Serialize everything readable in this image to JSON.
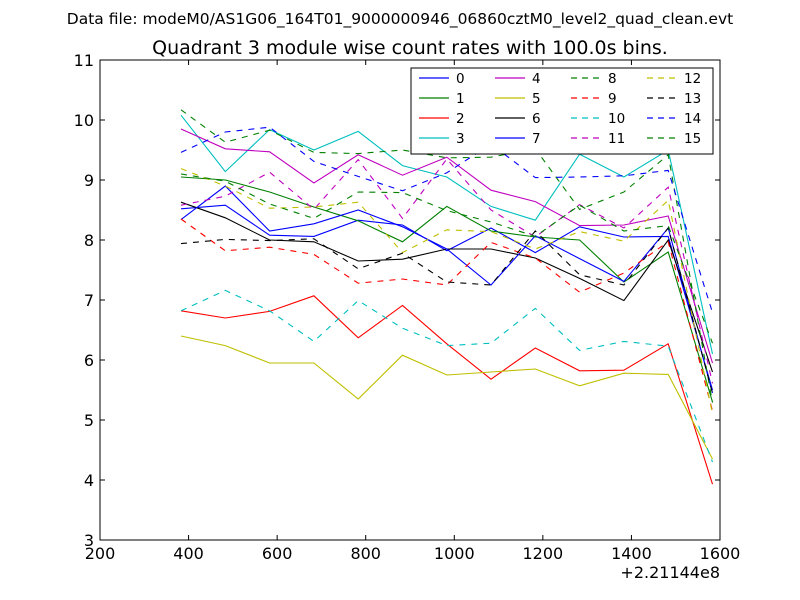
{
  "chart_data": {
    "type": "line",
    "header": "Data file: modeM0/AS1G06_164T01_9000000946_06860cztM0_level2_quad_clean.evt",
    "title": "Quadrant 3 module wise count rates with 100.0s bins.",
    "xlabel": "",
    "ylabel": "",
    "x_offset_label": "+2.21144e8",
    "xlim": [
      200,
      1600
    ],
    "ylim": [
      3,
      11
    ],
    "xticks": [
      "200",
      "400",
      "600",
      "800",
      "1000",
      "1200",
      "1400",
      "1600"
    ],
    "yticks": [
      "3",
      "4",
      "5",
      "6",
      "7",
      "8",
      "9",
      "10",
      "11"
    ],
    "x": [
      383,
      483,
      583,
      683,
      783,
      883,
      983,
      1083,
      1183,
      1283,
      1383,
      1483,
      1583
    ],
    "legend_position": "top-right",
    "series": [
      {
        "name": "0",
        "color": "#0000ff",
        "dash": "solid",
        "values": [
          8.52,
          8.58,
          8.08,
          8.06,
          8.33,
          8.25,
          7.82,
          8.2,
          7.79,
          8.22,
          8.05,
          8.06,
          5.5
        ]
      },
      {
        "name": "1",
        "color": "#008000",
        "dash": "solid",
        "values": [
          9.05,
          9.0,
          8.8,
          8.55,
          8.32,
          7.97,
          8.56,
          8.15,
          8.05,
          8.0,
          7.3,
          7.8,
          5.3
        ]
      },
      {
        "name": "2",
        "color": "#ff0000",
        "dash": "solid",
        "values": [
          6.82,
          6.7,
          6.81,
          7.07,
          6.37,
          6.91,
          6.27,
          5.68,
          6.2,
          5.82,
          5.83,
          6.27,
          3.93
        ]
      },
      {
        "name": "3",
        "color": "#00bfbf",
        "dash": "solid",
        "values": [
          10.08,
          9.14,
          9.84,
          9.5,
          9.81,
          9.24,
          9.05,
          8.56,
          8.33,
          9.43,
          9.05,
          9.5,
          6.1
        ]
      },
      {
        "name": "4",
        "color": "#bf00bf",
        "dash": "solid",
        "values": [
          9.85,
          9.52,
          9.47,
          8.95,
          9.42,
          9.08,
          9.38,
          8.83,
          8.64,
          8.24,
          8.25,
          8.4,
          5.95
        ]
      },
      {
        "name": "5",
        "color": "#bfbf00",
        "dash": "solid",
        "values": [
          6.4,
          6.24,
          5.95,
          5.95,
          5.35,
          6.08,
          5.75,
          5.8,
          5.85,
          5.57,
          5.78,
          5.76,
          4.35
        ]
      },
      {
        "name": "6",
        "color": "#000000",
        "dash": "solid",
        "values": [
          8.63,
          8.37,
          8.0,
          7.97,
          7.65,
          7.68,
          7.85,
          7.85,
          7.7,
          7.36,
          6.99,
          8.0,
          5.8
        ]
      },
      {
        "name": "7",
        "color": "#0000ff",
        "dash": "solid",
        "values": [
          8.34,
          8.9,
          8.15,
          8.27,
          8.5,
          8.22,
          7.85,
          7.25,
          8.07,
          7.69,
          7.31,
          8.2,
          5.45
        ]
      },
      {
        "name": "8",
        "color": "#008000",
        "dash": "dashed",
        "values": [
          10.17,
          9.63,
          9.83,
          9.46,
          9.44,
          9.5,
          9.37,
          9.38,
          9.52,
          8.51,
          8.8,
          9.42,
          5.29
        ]
      },
      {
        "name": "9",
        "color": "#ff0000",
        "dash": "dashed",
        "values": [
          8.35,
          7.82,
          7.88,
          7.76,
          7.28,
          7.35,
          7.25,
          7.96,
          7.7,
          7.13,
          7.45,
          7.97,
          5.15
        ]
      },
      {
        "name": "10",
        "color": "#00bfbf",
        "dash": "dashed",
        "values": [
          6.82,
          7.16,
          6.82,
          6.31,
          6.99,
          6.53,
          6.24,
          6.28,
          6.86,
          6.16,
          6.31,
          6.23,
          4.3
        ]
      },
      {
        "name": "11",
        "color": "#bf00bf",
        "dash": "dashed",
        "values": [
          8.58,
          8.73,
          9.13,
          8.51,
          9.34,
          8.36,
          9.35,
          8.5,
          8.05,
          8.59,
          8.2,
          8.88,
          5.61
        ]
      },
      {
        "name": "12",
        "color": "#bfbf00",
        "dash": "dashed",
        "values": [
          9.19,
          8.9,
          8.53,
          8.55,
          8.63,
          7.79,
          8.17,
          8.14,
          7.85,
          8.14,
          7.98,
          8.66,
          5.1
        ]
      },
      {
        "name": "13",
        "color": "#000000",
        "dash": "dashed",
        "values": [
          7.94,
          8.01,
          7.99,
          8.02,
          7.52,
          7.78,
          7.3,
          7.25,
          8.15,
          7.42,
          7.25,
          8.2,
          5.45
        ]
      },
      {
        "name": "14",
        "color": "#0000ff",
        "dash": "dashed",
        "values": [
          9.46,
          9.8,
          9.88,
          9.31,
          9.06,
          8.82,
          9.12,
          9.6,
          9.04,
          9.05,
          9.07,
          9.16,
          6.79
        ]
      },
      {
        "name": "15",
        "color": "#008000",
        "dash": "dashed",
        "values": [
          9.1,
          8.98,
          8.6,
          8.36,
          8.8,
          8.79,
          8.49,
          8.3,
          8.06,
          8.58,
          8.15,
          8.24,
          6.28
        ]
      }
    ]
  }
}
